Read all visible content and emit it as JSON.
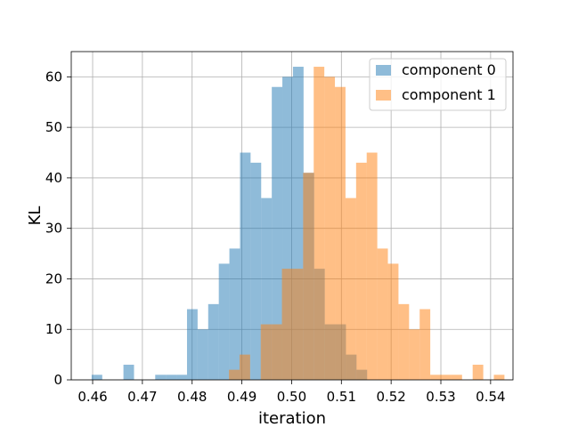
{
  "chart_data": {
    "type": "bar",
    "subtype": "histogram-overlaid",
    "title": "",
    "xlabel": "iteration",
    "ylabel": "KL",
    "xlim": [
      0.4557,
      0.5445
    ],
    "ylim": [
      0,
      65
    ],
    "xticks": [
      0.46,
      0.47,
      0.48,
      0.49,
      0.5,
      0.51,
      0.52,
      0.53,
      0.54
    ],
    "xtick_labels": [
      "0.46",
      "0.47",
      "0.48",
      "0.49",
      "0.50",
      "0.51",
      "0.52",
      "0.53",
      "0.54"
    ],
    "yticks": [
      0,
      10,
      20,
      30,
      40,
      50,
      60
    ],
    "ytick_labels": [
      "0",
      "10",
      "20",
      "30",
      "40",
      "50",
      "60"
    ],
    "grid": true,
    "legend_position": "top-right",
    "series": [
      {
        "name": "component 0",
        "color": "#1f77b4",
        "alpha": 0.5,
        "bin_start": 0.4598,
        "bin_width": 0.00213,
        "counts": [
          1,
          0,
          0,
          3,
          0,
          0,
          1,
          1,
          1,
          14,
          10,
          15,
          23,
          26,
          45,
          43,
          36,
          58,
          60,
          62,
          41,
          22,
          11,
          11,
          5,
          2
        ]
      },
      {
        "name": "component 1",
        "color": "#ff7f0e",
        "alpha": 0.5,
        "bin_start": 0.4874,
        "bin_width": 0.00213,
        "counts": [
          2,
          5,
          0,
          11,
          11,
          22,
          22,
          41,
          62,
          60,
          58,
          36,
          43,
          45,
          26,
          23,
          15,
          10,
          14,
          1,
          1,
          1,
          0,
          3,
          0,
          1
        ]
      }
    ]
  }
}
